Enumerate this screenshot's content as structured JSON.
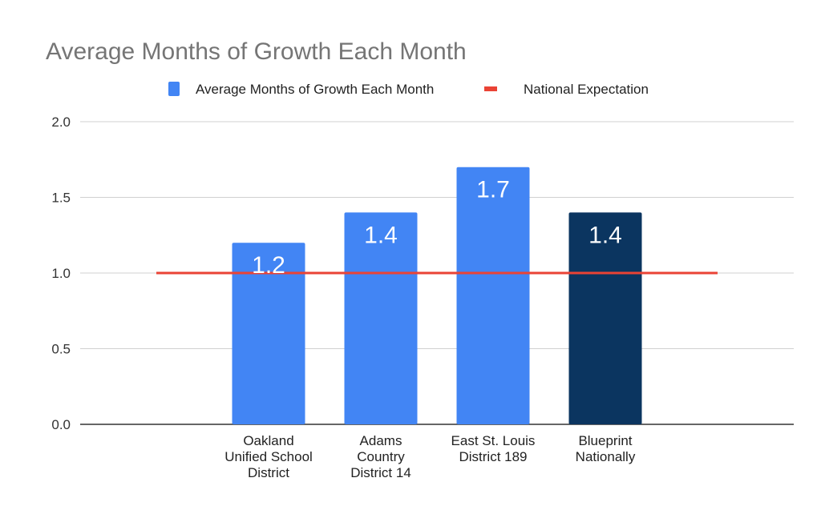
{
  "chart_data": {
    "type": "bar",
    "title": "Average Months of Growth Each Month",
    "xlabel": "",
    "ylabel": "",
    "ylim": [
      0,
      2.0
    ],
    "yticks": [
      "0.0",
      "0.5",
      "1.0",
      "1.5",
      "2.0"
    ],
    "grid": true,
    "legend_position": "top",
    "categories": [
      [
        "Oakland",
        "Unified School",
        "District"
      ],
      [
        "Adams",
        "Country",
        "District 14"
      ],
      [
        "East St. Louis",
        "District 189"
      ],
      [
        "Blueprint",
        "Nationally"
      ]
    ],
    "series": [
      {
        "name": "Average Months of Growth Each Month",
        "type": "bar",
        "values": [
          1.2,
          1.4,
          1.7,
          1.4
        ],
        "data_labels": [
          "1.2",
          "1.4",
          "1.7",
          "1.4"
        ],
        "color": "#4285f4",
        "point_colors": [
          "#4285f4",
          "#4285f4",
          "#4285f4",
          "#0b3560"
        ]
      },
      {
        "name": "National Expectation",
        "type": "line",
        "value": 1.0,
        "color": "#ea4335"
      }
    ]
  }
}
